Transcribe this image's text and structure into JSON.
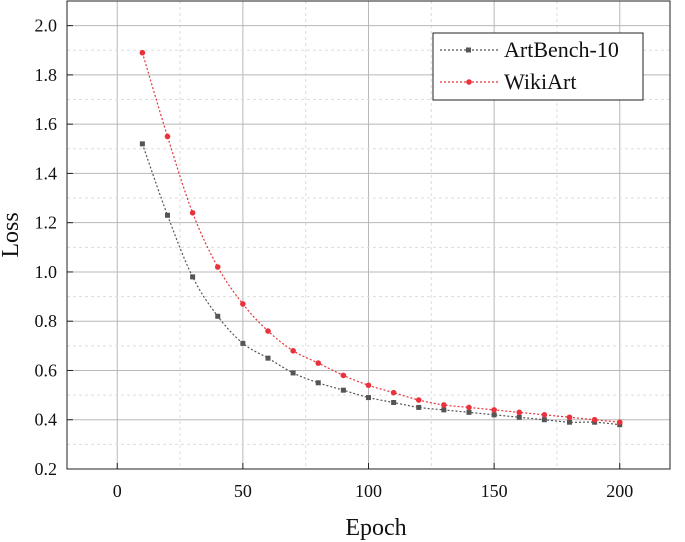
{
  "chart_data": {
    "type": "line",
    "title": "",
    "xlabel": "Epoch",
    "ylabel": "Loss",
    "xlim": [
      -20,
      220
    ],
    "ylim": [
      0.2,
      2.1
    ],
    "xticks": [
      "0",
      "50",
      "100",
      "150",
      "200"
    ],
    "yticks": [
      "0.2",
      "0.4",
      "0.6",
      "0.8",
      "1.0",
      "1.2",
      "1.4",
      "1.6",
      "1.8",
      "2.0"
    ],
    "grid": true,
    "legend_position": "top-right",
    "series": [
      {
        "name": "ArtBench-10",
        "color": "#555555",
        "marker": "square",
        "x": [
          10,
          20,
          30,
          40,
          50,
          60,
          70,
          80,
          90,
          100,
          110,
          120,
          130,
          140,
          150,
          160,
          170,
          180,
          190,
          200
        ],
        "values": [
          1.52,
          1.23,
          0.98,
          0.82,
          0.71,
          0.65,
          0.59,
          0.55,
          0.52,
          0.49,
          0.47,
          0.45,
          0.44,
          0.43,
          0.42,
          0.41,
          0.4,
          0.39,
          0.39,
          0.38
        ]
      },
      {
        "name": "WikiArt",
        "color": "#e8323c",
        "marker": "circle",
        "x": [
          10,
          20,
          30,
          40,
          50,
          60,
          70,
          80,
          90,
          100,
          110,
          120,
          130,
          140,
          150,
          160,
          170,
          180,
          190,
          200
        ],
        "values": [
          1.89,
          1.55,
          1.24,
          1.02,
          0.87,
          0.76,
          0.68,
          0.63,
          0.58,
          0.54,
          0.51,
          0.48,
          0.46,
          0.45,
          0.44,
          0.43,
          0.42,
          0.41,
          0.4,
          0.39
        ]
      }
    ]
  }
}
